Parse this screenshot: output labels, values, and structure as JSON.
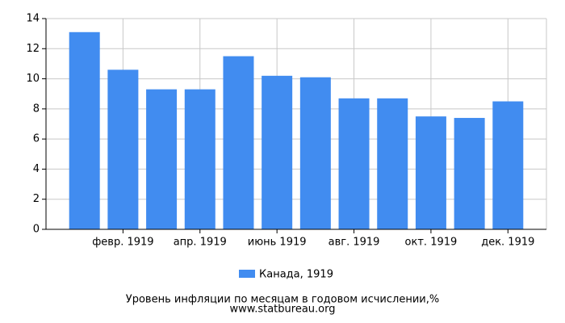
{
  "chart_data": {
    "type": "bar",
    "categories": [
      null,
      "февр. 1919",
      null,
      "апр. 1919",
      null,
      "июнь 1919",
      null,
      "авг. 1919",
      null,
      "окт. 1919",
      null,
      "дек. 1919"
    ],
    "series": [
      {
        "name": "Канада, 1919",
        "color": "#418cf0",
        "values": [
          13.1,
          10.6,
          9.3,
          9.3,
          11.5,
          10.2,
          10.1,
          8.7,
          8.7,
          7.5,
          7.4,
          8.5
        ]
      }
    ],
    "ylim": [
      0,
      14
    ],
    "yticks": [
      0,
      2,
      4,
      6,
      8,
      10,
      12,
      14
    ],
    "grid": true,
    "xlabel": "Уровень инфляции по месяцам в годовом исчислении,%",
    "source": "www.statbureau.org"
  }
}
